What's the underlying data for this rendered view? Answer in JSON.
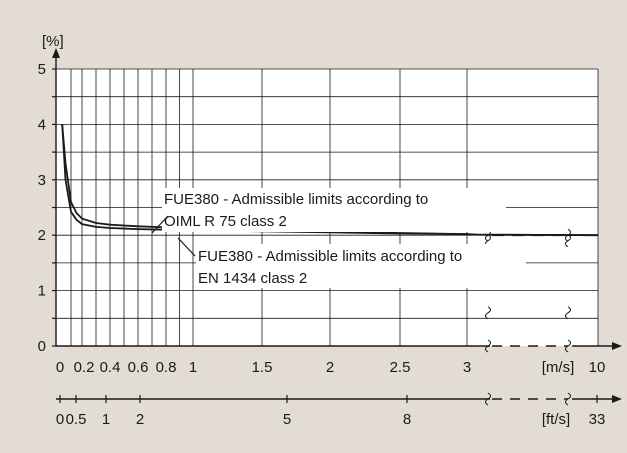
{
  "chart_data": {
    "type": "line",
    "title": "",
    "ylabel": "[%]",
    "ylim": [
      0,
      5
    ],
    "y_ticks": [
      "0",
      "1",
      "2",
      "3",
      "4",
      "5"
    ],
    "x_ticks": [
      "0",
      "0.2",
      "0.4",
      "0.6",
      "0.8",
      "1",
      "1.5",
      "2",
      "2.5",
      "3",
      "10"
    ],
    "x_unit": "[m/s]",
    "x2_ticks": [
      "0",
      "0.5",
      "1",
      "2",
      "5",
      "8",
      "33"
    ],
    "x2_unit": "[ft/s]",
    "series": [
      {
        "name": "OIML R 75 class 2",
        "x": [
          0.02,
          0.05,
          0.1,
          0.15,
          0.2,
          0.3,
          0.4,
          0.6,
          0.8,
          1.0,
          1.5,
          2.0,
          2.5,
          3.0,
          3.5,
          10
        ],
        "y": [
          4.0,
          3.3,
          2.6,
          2.4,
          2.3,
          2.22,
          2.19,
          2.16,
          2.14,
          2.12,
          2.09,
          2.06,
          2.04,
          2.02,
          2.01,
          2.0
        ]
      },
      {
        "name": "EN 1434 class 2",
        "x": [
          0.02,
          0.05,
          0.1,
          0.15,
          0.2,
          0.3,
          0.4,
          0.6,
          0.8,
          1.0,
          1.5,
          2.0,
          2.5,
          3.0,
          3.5,
          10
        ],
        "y": [
          4.0,
          3.0,
          2.42,
          2.28,
          2.2,
          2.15,
          2.13,
          2.11,
          2.1,
          2.09,
          2.07,
          2.05,
          2.03,
          2.02,
          2.01,
          2.0
        ]
      }
    ],
    "annotations": [
      {
        "line1": "FUE380 - Admissible limits according to",
        "line2": "OIML R 75 class 2"
      },
      {
        "line1": "FUE380 - Admissible limits according to",
        "line2": "EN 1434 class 2"
      }
    ],
    "colors": {
      "background": "#e3dcd4",
      "plot": "#ffffff",
      "line": "#1a1a1a"
    },
    "grid": true
  }
}
